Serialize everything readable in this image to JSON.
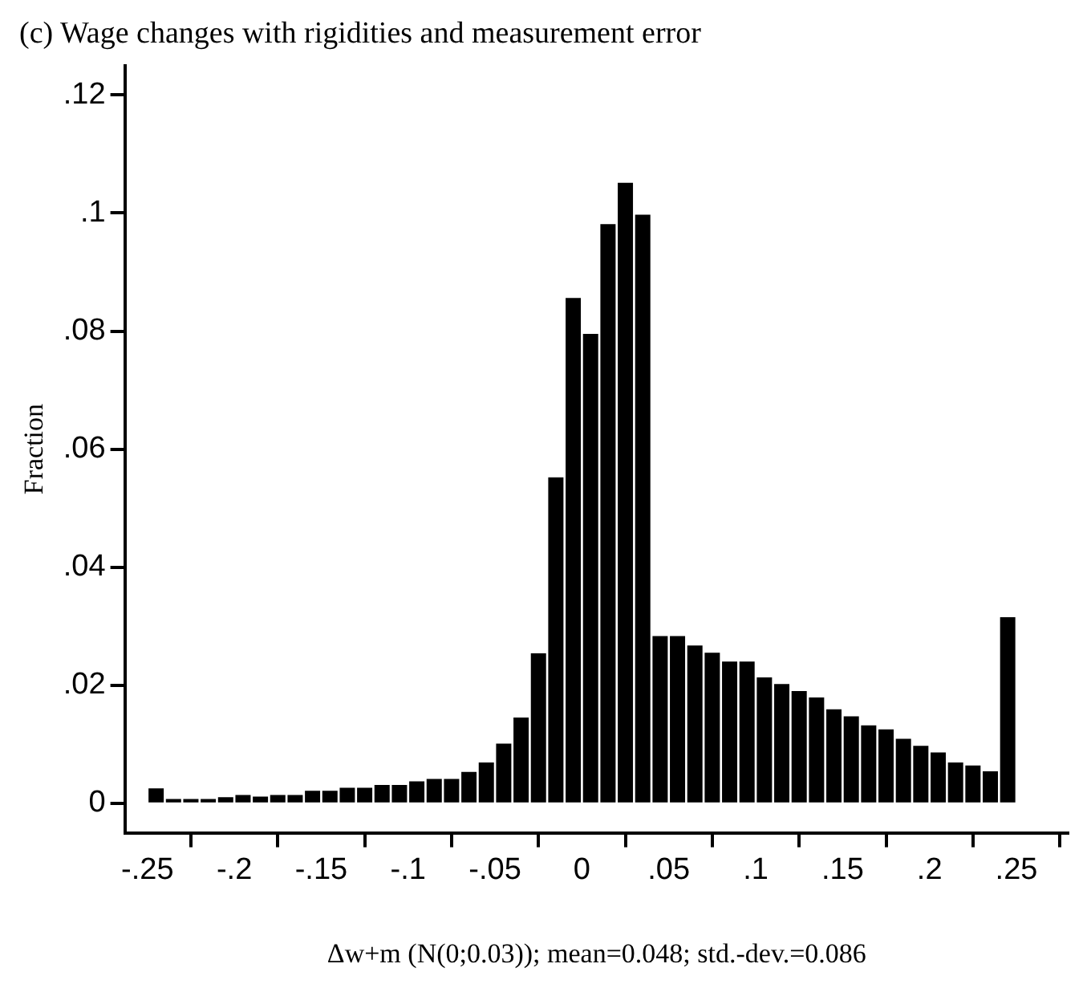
{
  "chart_data": {
    "type": "histogram",
    "title": "(c) Wage changes with rigidities and measurement error",
    "xlabel": "Δw+m (N(0;0.03)); mean=0.048; std.-dev.=0.086",
    "ylabel": "Fraction",
    "bins": [
      -0.25,
      -0.24,
      -0.23,
      -0.22,
      -0.21,
      -0.2,
      -0.19,
      -0.18,
      -0.17,
      -0.16,
      -0.15,
      -0.14,
      -0.13,
      -0.12,
      -0.11,
      -0.1,
      -0.09,
      -0.08,
      -0.07,
      -0.06,
      -0.05,
      -0.04,
      -0.03,
      -0.02,
      -0.01,
      0,
      0.01,
      0.02,
      0.03,
      0.04,
      0.05,
      0.06,
      0.07,
      0.08,
      0.09,
      0.1,
      0.11,
      0.12,
      0.13,
      0.14,
      0.15,
      0.16,
      0.17,
      0.18,
      0.19,
      0.2,
      0.21,
      0.22,
      0.23,
      0.24,
      0.25
    ],
    "values": [
      0.0027,
      0.0009,
      0.0009,
      0.0009,
      0.0012,
      0.0016,
      0.0013,
      0.0016,
      0.0016,
      0.0023,
      0.0023,
      0.0028,
      0.0028,
      0.0033,
      0.0033,
      0.0039,
      0.0043,
      0.0043,
      0.0055,
      0.0071,
      0.0103,
      0.0147,
      0.0256,
      0.0554,
      0.0858,
      0.0797,
      0.0983,
      0.1053,
      0.0999,
      0.0285,
      0.0285,
      0.0269,
      0.0257,
      0.0242,
      0.0242,
      0.0215,
      0.0204,
      0.0192,
      0.0181,
      0.0161,
      0.0149,
      0.0134,
      0.0127,
      0.0111,
      0.0099,
      0.0088,
      0.0071,
      0.0066,
      0.0056,
      0.0317
    ],
    "color": "#000000",
    "xlim": [
      -0.263,
      0.28
    ],
    "xticks": [
      {
        "value": -0.25,
        "label": "-.25"
      },
      {
        "value": -0.2,
        "label": "-.2"
      },
      {
        "value": -0.15,
        "label": "-.15"
      },
      {
        "value": -0.1,
        "label": "-.1"
      },
      {
        "value": -0.05,
        "label": "-.05"
      },
      0,
      {
        "value": 0.05,
        "label": ".05"
      },
      {
        "value": 0.1,
        "label": ".1"
      },
      {
        "value": 0.15,
        "label": ".15"
      },
      {
        "value": 0.2,
        "label": ".2"
      },
      {
        "value": 0.25,
        "label": ".25"
      }
    ],
    "ylim": [
      -0.005,
      0.125
    ],
    "yticks": [
      0,
      {
        "value": 0.02,
        "label": ".02"
      },
      {
        "value": 0.04,
        "label": ".04"
      },
      {
        "value": 0.06,
        "label": ".06"
      },
      {
        "value": 0.08,
        "label": ".08"
      },
      {
        "value": 0.1,
        "label": ".1"
      },
      {
        "value": 0.12,
        "label": ".12"
      }
    ],
    "grid": false
  }
}
